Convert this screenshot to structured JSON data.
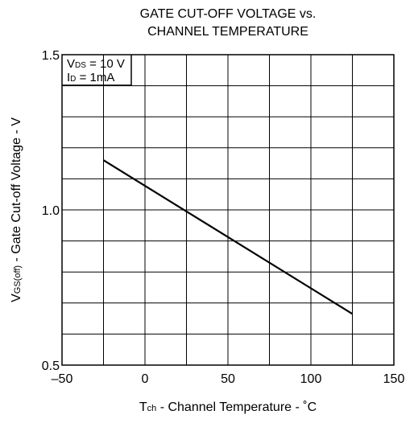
{
  "chart_data": {
    "type": "line",
    "title_lines": [
      "GATE CUT-OFF VOLTAGE vs.",
      "CHANNEL TEMPERATURE"
    ],
    "xlabel": {
      "main": "T",
      "sub": "ch",
      "rest": " - Channel Temperature - ˚C"
    },
    "ylabel": {
      "main": "V",
      "sub": "GS(off)",
      "rest": " - Gate Cut-off Voltage - V"
    },
    "xlim": [
      -50,
      150
    ],
    "ylim": [
      0.5,
      1.5
    ],
    "x_ticks": [
      -50,
      0,
      50,
      100,
      150
    ],
    "x_tick_labels": [
      "–50",
      "0",
      "50",
      "100",
      "150"
    ],
    "y_ticks": [
      0.5,
      1.0,
      1.5
    ],
    "y_tick_labels": [
      "0.5",
      "1.0",
      "1.5"
    ],
    "x_grid_step": 25,
    "y_grid_step": 0.1,
    "grid": true,
    "conditions": [
      {
        "main": "V",
        "sub": "DS",
        "rest": " = 10 V"
      },
      {
        "main": "I",
        "sub": "D",
        "rest": " = 1mA"
      }
    ],
    "series": [
      {
        "x": [
          -25,
          125
        ],
        "y": [
          1.16,
          0.665
        ]
      }
    ],
    "colors": {
      "line": "#000000",
      "grid": "#000000",
      "background": "#ffffff"
    }
  }
}
